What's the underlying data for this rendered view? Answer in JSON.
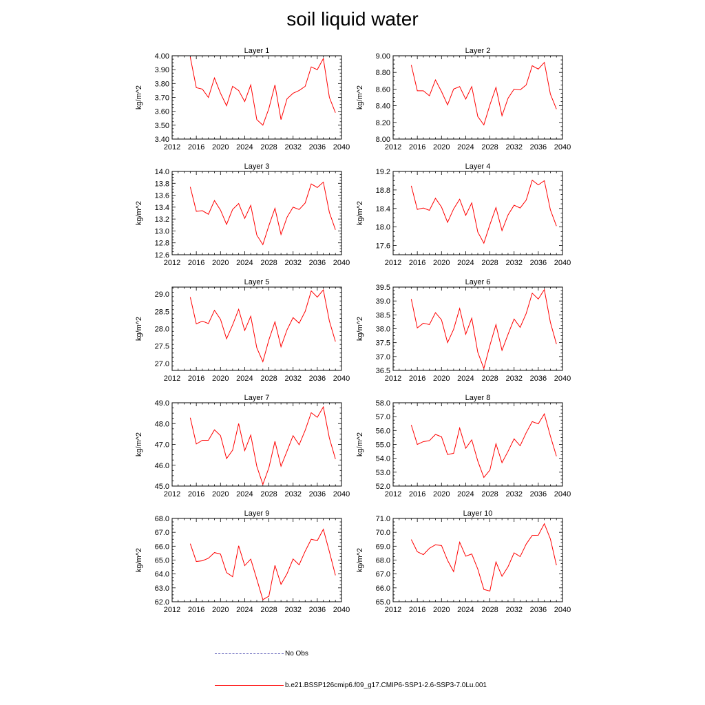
{
  "title": "soil liquid water",
  "legend": {
    "no_obs": "No Obs",
    "run": "b.e21.BSSP126cmip6.f09_g17.CMIP6-SSP1-2.6-SSP3-7.0Lu.001"
  },
  "colors": {
    "series": "#ff0000",
    "no_obs": "#6666bb"
  },
  "chart_data": [
    {
      "type": "line",
      "title": "Layer 1",
      "ylabel": "kg/m^2",
      "xlim": [
        2012,
        2040
      ],
      "ylim": [
        3.4,
        4.0
      ],
      "yticks": [
        3.4,
        3.5,
        3.6,
        3.7,
        3.8,
        3.9,
        4.0
      ],
      "ydecimals": 2,
      "xticks": [
        2012,
        2016,
        2020,
        2024,
        2028,
        2032,
        2036,
        2040
      ],
      "x": [
        2015,
        2016,
        2017,
        2018,
        2019,
        2020,
        2021,
        2022,
        2023,
        2024,
        2025,
        2026,
        2027,
        2028,
        2029,
        2030,
        2031,
        2032,
        2033,
        2034,
        2035,
        2036,
        2037,
        2038,
        2039
      ],
      "series": [
        {
          "values": [
            3.99,
            3.77,
            3.76,
            3.7,
            3.84,
            3.73,
            3.64,
            3.78,
            3.75,
            3.67,
            3.79,
            3.54,
            3.5,
            3.62,
            3.79,
            3.54,
            3.69,
            3.73,
            3.75,
            3.78,
            3.92,
            3.9,
            3.98,
            3.7,
            3.59
          ]
        }
      ]
    },
    {
      "type": "line",
      "title": "Layer 2",
      "ylabel": "kg/m^2",
      "xlim": [
        2012,
        2040
      ],
      "ylim": [
        8.0,
        9.0
      ],
      "yticks": [
        8.0,
        8.2,
        8.4,
        8.6,
        8.8,
        9.0
      ],
      "ydecimals": 2,
      "xticks": [
        2012,
        2016,
        2020,
        2024,
        2028,
        2032,
        2036,
        2040
      ],
      "x": [
        2015,
        2016,
        2017,
        2018,
        2019,
        2020,
        2021,
        2022,
        2023,
        2024,
        2025,
        2026,
        2027,
        2028,
        2029,
        2030,
        2031,
        2032,
        2033,
        2034,
        2035,
        2036,
        2037,
        2038,
        2039
      ],
      "series": [
        {
          "values": [
            8.89,
            8.58,
            8.58,
            8.52,
            8.71,
            8.57,
            8.41,
            8.6,
            8.63,
            8.48,
            8.63,
            8.27,
            8.17,
            8.41,
            8.62,
            8.28,
            8.49,
            8.6,
            8.59,
            8.65,
            8.88,
            8.84,
            8.92,
            8.54,
            8.36
          ]
        }
      ]
    },
    {
      "type": "line",
      "title": "Layer 3",
      "ylabel": "kg/m^2",
      "xlim": [
        2012,
        2040
      ],
      "ylim": [
        12.6,
        14.0
      ],
      "yticks": [
        12.6,
        12.8,
        13.0,
        13.2,
        13.4,
        13.6,
        13.8,
        14.0
      ],
      "ydecimals": 1,
      "xticks": [
        2012,
        2016,
        2020,
        2024,
        2028,
        2032,
        2036,
        2040
      ],
      "x": [
        2015,
        2016,
        2017,
        2018,
        2019,
        2020,
        2021,
        2022,
        2023,
        2024,
        2025,
        2026,
        2027,
        2028,
        2029,
        2030,
        2031,
        2032,
        2033,
        2034,
        2035,
        2036,
        2037,
        2038,
        2039
      ],
      "series": [
        {
          "values": [
            13.74,
            13.33,
            13.34,
            13.28,
            13.51,
            13.35,
            13.11,
            13.36,
            13.46,
            13.21,
            13.43,
            12.93,
            12.77,
            13.09,
            13.38,
            12.94,
            13.23,
            13.4,
            13.36,
            13.47,
            13.79,
            13.73,
            13.82,
            13.31,
            13.02
          ]
        }
      ]
    },
    {
      "type": "line",
      "title": "Layer 4",
      "ylabel": "kg/m^2",
      "xlim": [
        2012,
        2040
      ],
      "ylim": [
        17.4,
        19.2
      ],
      "yticks": [
        17.6,
        18.0,
        18.4,
        18.8,
        19.2
      ],
      "ydecimals": 1,
      "xticks": [
        2012,
        2016,
        2020,
        2024,
        2028,
        2032,
        2036,
        2040
      ],
      "x": [
        2015,
        2016,
        2017,
        2018,
        2019,
        2020,
        2021,
        2022,
        2023,
        2024,
        2025,
        2026,
        2027,
        2028,
        2029,
        2030,
        2031,
        2032,
        2033,
        2034,
        2035,
        2036,
        2037,
        2038,
        2039
      ],
      "series": [
        {
          "values": [
            18.89,
            18.38,
            18.41,
            18.36,
            18.62,
            18.43,
            18.1,
            18.39,
            18.6,
            18.25,
            18.52,
            17.89,
            17.65,
            18.05,
            18.42,
            17.92,
            18.26,
            18.47,
            18.41,
            18.58,
            19.01,
            18.91,
            19.0,
            18.37,
            18.02
          ]
        }
      ]
    },
    {
      "type": "line",
      "title": "Layer 5",
      "ylabel": "kg/m^2",
      "xlim": [
        2012,
        2040
      ],
      "ylim": [
        26.8,
        29.2
      ],
      "yticks": [
        27.0,
        27.5,
        28.0,
        28.5,
        29.0
      ],
      "ydecimals": 1,
      "xticks": [
        2012,
        2016,
        2020,
        2024,
        2028,
        2032,
        2036,
        2040
      ],
      "x": [
        2015,
        2016,
        2017,
        2018,
        2019,
        2020,
        2021,
        2022,
        2023,
        2024,
        2025,
        2026,
        2027,
        2028,
        2029,
        2030,
        2031,
        2032,
        2033,
        2034,
        2035,
        2036,
        2037,
        2038,
        2039
      ],
      "series": [
        {
          "values": [
            28.91,
            28.14,
            28.22,
            28.15,
            28.53,
            28.27,
            27.71,
            28.11,
            28.56,
            27.95,
            28.36,
            27.45,
            27.05,
            27.68,
            28.2,
            27.48,
            27.97,
            28.32,
            28.16,
            28.5,
            29.09,
            28.91,
            29.12,
            28.22,
            27.63
          ]
        }
      ]
    },
    {
      "type": "line",
      "title": "Layer 6",
      "ylabel": "kg/m^2",
      "xlim": [
        2012,
        2040
      ],
      "ylim": [
        36.5,
        39.5
      ],
      "yticks": [
        36.5,
        37.0,
        37.5,
        38.0,
        38.5,
        39.0,
        39.5
      ],
      "ydecimals": 1,
      "xticks": [
        2012,
        2016,
        2020,
        2024,
        2028,
        2032,
        2036,
        2040
      ],
      "x": [
        2015,
        2016,
        2017,
        2018,
        2019,
        2020,
        2021,
        2022,
        2023,
        2024,
        2025,
        2026,
        2027,
        2028,
        2029,
        2030,
        2031,
        2032,
        2033,
        2034,
        2035,
        2036,
        2037,
        2038,
        2039
      ],
      "series": [
        {
          "values": [
            39.07,
            38.03,
            38.2,
            38.15,
            38.58,
            38.32,
            37.5,
            37.98,
            38.73,
            37.8,
            38.38,
            37.15,
            36.57,
            37.4,
            38.15,
            37.22,
            37.8,
            38.35,
            38.05,
            38.55,
            39.28,
            39.07,
            39.41,
            38.23,
            37.45
          ]
        }
      ]
    },
    {
      "type": "line",
      "title": "Layer 7",
      "ylabel": "kg/m^2",
      "xlim": [
        2012,
        2040
      ],
      "ylim": [
        45.0,
        49.0
      ],
      "yticks": [
        45.0,
        46.0,
        47.0,
        48.0,
        49.0
      ],
      "ydecimals": 1,
      "xticks": [
        2012,
        2016,
        2020,
        2024,
        2028,
        2032,
        2036,
        2040
      ],
      "x": [
        2015,
        2016,
        2017,
        2018,
        2019,
        2020,
        2021,
        2022,
        2023,
        2024,
        2025,
        2026,
        2027,
        2028,
        2029,
        2030,
        2031,
        2032,
        2033,
        2034,
        2035,
        2036,
        2037,
        2038,
        2039
      ],
      "series": [
        {
          "values": [
            48.28,
            47.02,
            47.2,
            47.2,
            47.7,
            47.42,
            46.32,
            46.72,
            48.0,
            46.7,
            47.45,
            45.95,
            45.08,
            45.88,
            47.15,
            45.95,
            46.68,
            47.42,
            46.98,
            47.68,
            48.52,
            48.3,
            48.8,
            47.3,
            46.3
          ]
        }
      ]
    },
    {
      "type": "line",
      "title": "Layer 8",
      "ylabel": "kg/m^2",
      "xlim": [
        2012,
        2040
      ],
      "ylim": [
        52.0,
        58.0
      ],
      "yticks": [
        52.0,
        53.0,
        54.0,
        55.0,
        56.0,
        57.0,
        58.0
      ],
      "ydecimals": 1,
      "xticks": [
        2012,
        2016,
        2020,
        2024,
        2028,
        2032,
        2036,
        2040
      ],
      "x": [
        2015,
        2016,
        2017,
        2018,
        2019,
        2020,
        2021,
        2022,
        2023,
        2024,
        2025,
        2026,
        2027,
        2028,
        2029,
        2030,
        2031,
        2032,
        2033,
        2034,
        2035,
        2036,
        2037,
        2038,
        2039
      ],
      "series": [
        {
          "values": [
            56.4,
            55.0,
            55.2,
            55.27,
            55.72,
            55.55,
            54.27,
            54.36,
            56.18,
            54.72,
            55.33,
            53.8,
            52.62,
            53.15,
            55.05,
            53.68,
            54.5,
            55.4,
            54.9,
            55.84,
            56.64,
            56.48,
            57.2,
            55.6,
            54.15
          ]
        }
      ]
    },
    {
      "type": "line",
      "title": "Layer 9",
      "ylabel": "kg/m^2",
      "xlim": [
        2012,
        2040
      ],
      "ylim": [
        62.0,
        68.0
      ],
      "yticks": [
        62.0,
        63.0,
        64.0,
        65.0,
        66.0,
        67.0,
        68.0
      ],
      "ydecimals": 1,
      "xticks": [
        2012,
        2016,
        2020,
        2024,
        2028,
        2032,
        2036,
        2040
      ],
      "x": [
        2015,
        2016,
        2017,
        2018,
        2019,
        2020,
        2021,
        2022,
        2023,
        2024,
        2025,
        2026,
        2027,
        2028,
        2029,
        2030,
        2031,
        2032,
        2033,
        2034,
        2035,
        2036,
        2037,
        2038,
        2039
      ],
      "series": [
        {
          "values": [
            66.18,
            64.9,
            64.95,
            65.13,
            65.54,
            65.43,
            64.1,
            63.8,
            66.03,
            64.6,
            65.07,
            63.62,
            62.15,
            62.4,
            64.62,
            63.25,
            64.02,
            65.08,
            64.66,
            65.64,
            66.5,
            66.4,
            67.22,
            65.6,
            63.9
          ]
        }
      ]
    },
    {
      "type": "line",
      "title": "Layer 10",
      "ylabel": "kg/m^2",
      "xlim": [
        2012,
        2040
      ],
      "ylim": [
        65.0,
        71.0
      ],
      "yticks": [
        65.0,
        66.0,
        67.0,
        68.0,
        69.0,
        70.0,
        71.0
      ],
      "ydecimals": 1,
      "xticks": [
        2012,
        2016,
        2020,
        2024,
        2028,
        2032,
        2036,
        2040
      ],
      "x": [
        2015,
        2016,
        2017,
        2018,
        2019,
        2020,
        2021,
        2022,
        2023,
        2024,
        2025,
        2026,
        2027,
        2028,
        2029,
        2030,
        2031,
        2032,
        2033,
        2034,
        2035,
        2036,
        2037,
        2038,
        2039
      ],
      "series": [
        {
          "values": [
            69.48,
            68.6,
            68.39,
            68.85,
            69.1,
            69.05,
            67.98,
            67.17,
            69.29,
            68.28,
            68.44,
            67.35,
            65.89,
            65.77,
            67.87,
            66.83,
            67.52,
            68.52,
            68.25,
            69.15,
            69.78,
            69.79,
            70.62,
            69.52,
            67.63
          ]
        }
      ]
    }
  ]
}
